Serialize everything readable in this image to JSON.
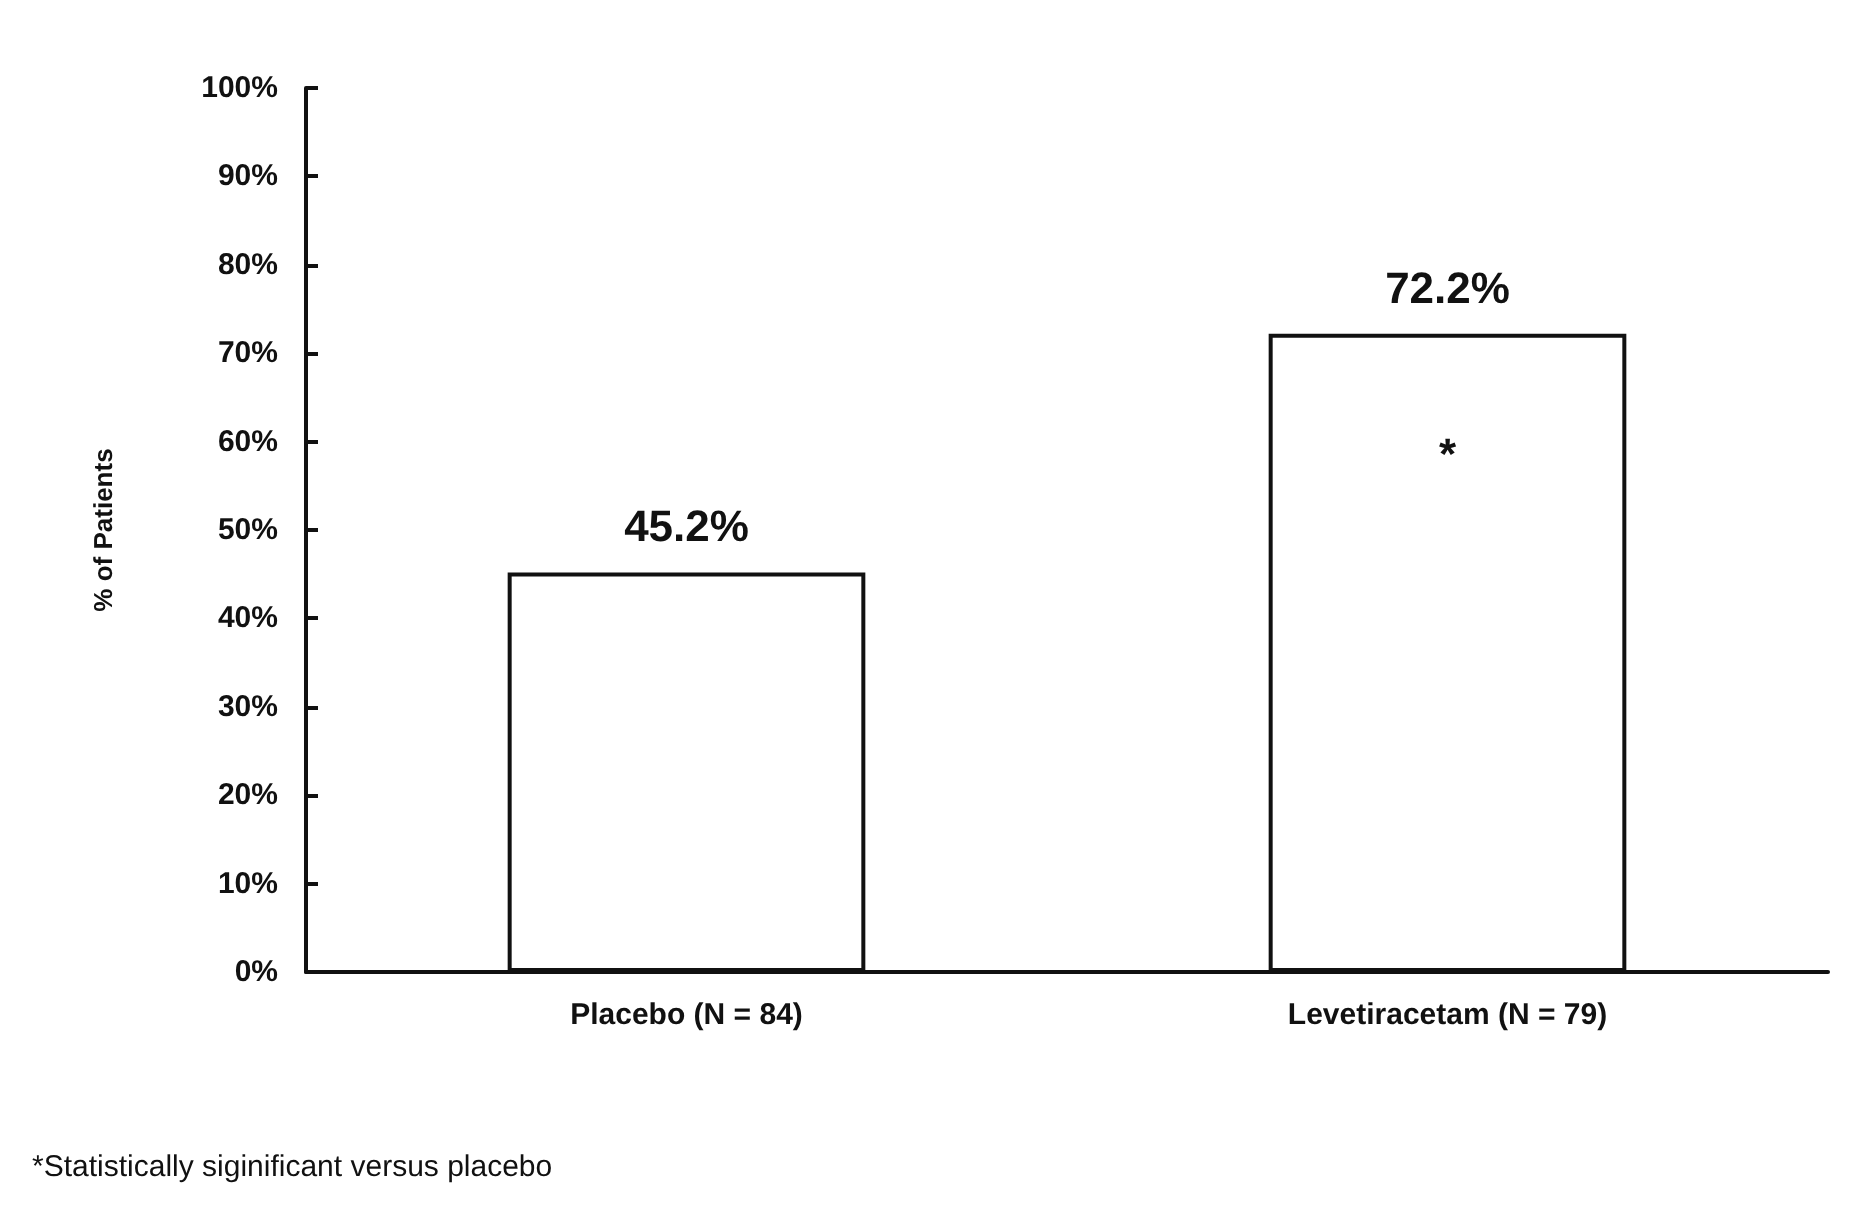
{
  "chart_data": {
    "type": "bar",
    "ylabel": "% of Patients",
    "categories": [
      "Placebo (N = 84)",
      "Levetiracetam (N = 79)"
    ],
    "values": [
      45.2,
      72.2
    ],
    "color": "#ffffff",
    "value_labels": [
      "45.2%",
      "72.2%"
    ],
    "ylim": [
      0,
      100
    ],
    "yticks": [
      {
        "value": 0,
        "label": "0%"
      },
      {
        "value": 10,
        "label": "10%"
      },
      {
        "value": 20,
        "label": "20%"
      },
      {
        "value": 30,
        "label": "30%"
      },
      {
        "value": 40,
        "label": "40%"
      },
      {
        "value": 50,
        "label": "50%"
      },
      {
        "value": 60,
        "label": "60%"
      },
      {
        "value": 70,
        "label": "70%"
      },
      {
        "value": 80,
        "label": "80%"
      },
      {
        "value": 90,
        "label": "90%"
      },
      {
        "value": 100,
        "label": "100%"
      }
    ],
    "grid": false,
    "annotations": [
      "*",
      "*Statistically siginificant versus placebo"
    ]
  }
}
